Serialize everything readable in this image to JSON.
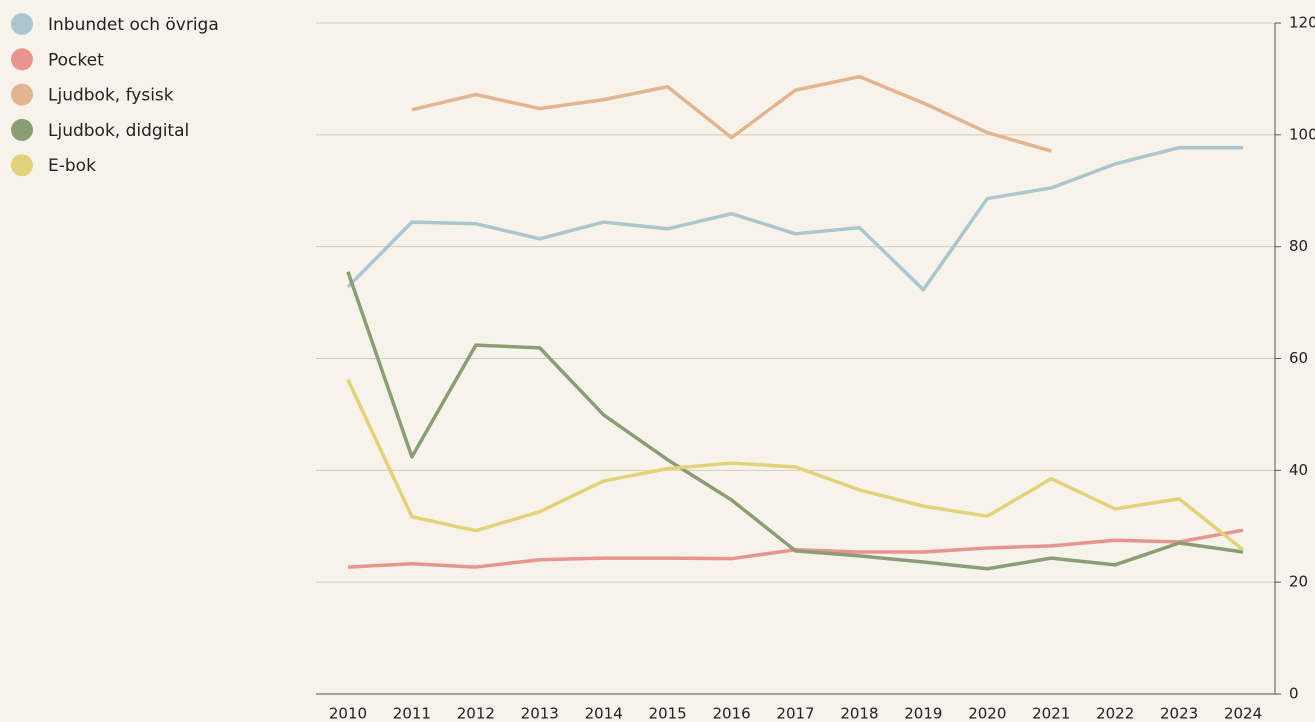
{
  "chart_data": {
    "type": "line",
    "x": [
      2010,
      2011,
      2012,
      2013,
      2014,
      2015,
      2016,
      2017,
      2018,
      2019,
      2020,
      2021,
      2022,
      2023,
      2024
    ],
    "xlim": [
      2009.5,
      2024.5
    ],
    "xticks": [
      2010,
      2011,
      2012,
      2013,
      2014,
      2015,
      2016,
      2017,
      2018,
      2019,
      2020,
      2021,
      2022,
      2023,
      2024
    ],
    "ylim": [
      0,
      120
    ],
    "yticks": [
      0,
      20,
      40,
      60,
      80,
      100,
      120
    ],
    "grid": true,
    "legend": "top-left",
    "series": [
      {
        "name": "Inbundet och övriga",
        "color": "#abc6cf",
        "values": [
          72.8,
          84.4,
          84.1,
          81.4,
          84.4,
          83.2,
          85.9,
          82.3,
          83.4,
          72.3,
          88.6,
          90.5,
          94.8,
          97.7,
          97.7
        ]
      },
      {
        "name": "Pocket",
        "color": "#e9958f",
        "values": [
          22.7,
          23.3,
          22.7,
          24.0,
          24.3,
          24.3,
          24.2,
          25.8,
          25.4,
          25.4,
          26.1,
          26.5,
          27.5,
          27.2,
          29.3
        ]
      },
      {
        "name": "Ljudbok, fysisk",
        "color": "#e2b48f",
        "values": [
          null,
          104.5,
          107.2,
          104.7,
          106.3,
          108.6,
          99.5,
          108.0,
          110.4,
          105.7,
          100.4,
          97.1,
          null,
          null,
          null
        ]
      },
      {
        "name": "Ljudbok, didgital",
        "color": "#8a9d76",
        "values": [
          75.5,
          42.4,
          62.4,
          61.9,
          49.9,
          41.9,
          34.7,
          25.6,
          24.7,
          23.6,
          22.4,
          24.3,
          23.1,
          27.0,
          25.4
        ]
      },
      {
        "name": "E-bok",
        "color": "#e2d27a",
        "values": [
          56.2,
          31.7,
          29.2,
          32.6,
          38.1,
          40.3,
          41.3,
          40.6,
          36.5,
          33.6,
          31.8,
          38.5,
          33.1,
          34.9,
          25.8
        ]
      }
    ]
  }
}
